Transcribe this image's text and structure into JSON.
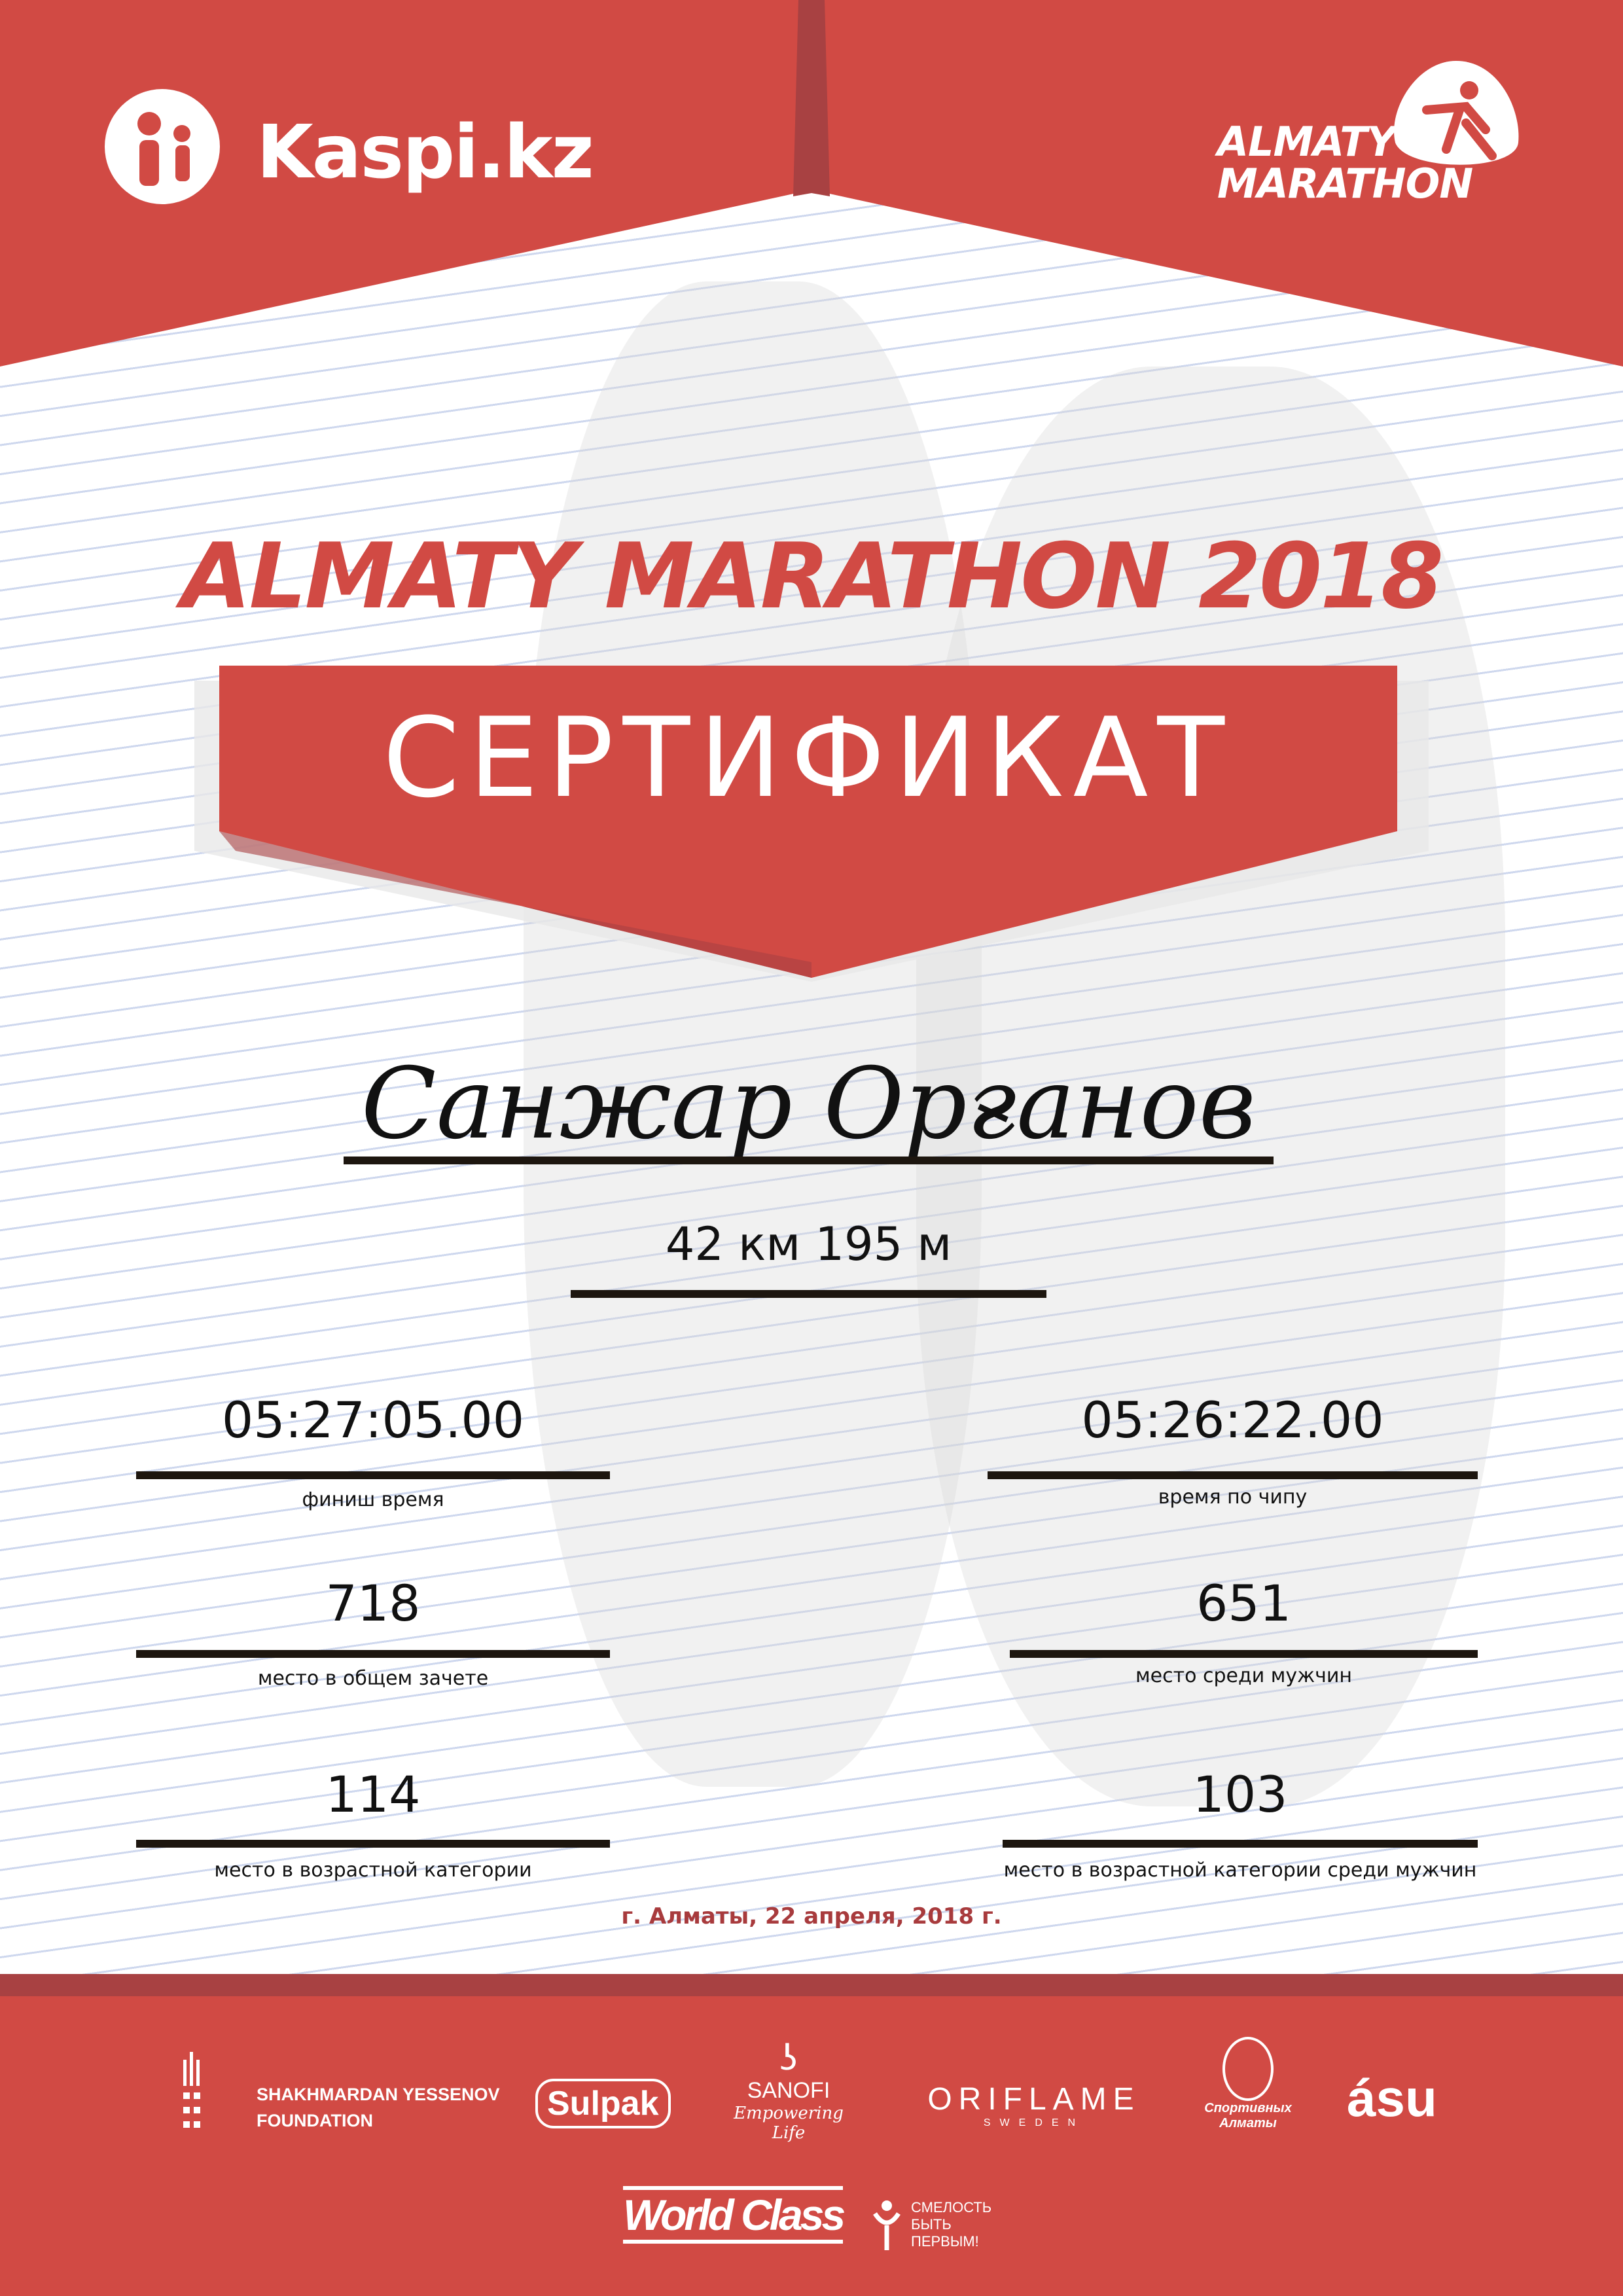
{
  "colors": {
    "brand_red": "#d14a44",
    "dark_red": "#a84142",
    "date_red": "#a83b3d",
    "line_blue": "#c9d3ec"
  },
  "header": {
    "left_logo": "Kaspi.kz",
    "right_logo_line1": "ALMATY",
    "right_logo_line2": "MARATHON"
  },
  "title": "ALMATY MARATHON 2018",
  "banner": "СЕРТИФИКАТ",
  "participant": {
    "name": "Санжар Орғанов",
    "distance": "42 км 195 м"
  },
  "results": {
    "finish_time": {
      "value": "05:27:05.00",
      "label": "финиш время"
    },
    "chip_time": {
      "value": "05:26:22.00",
      "label": "время по чипу"
    },
    "overall_place": {
      "value": "718",
      "label": "место в общем зачете"
    },
    "gender_place": {
      "value": "651",
      "label": "место среди мужчин"
    },
    "age_place": {
      "value": "114",
      "label": "место в возрастной категории"
    },
    "age_gender_place": {
      "value": "103",
      "label": "место в возрастной категории среди мужчин"
    }
  },
  "date": "г. Алматы, 22 апреля, 2018 г.",
  "sponsors": {
    "yessenov": [
      "SHAKHMARDAN YESSENOV",
      "FOUNDATION"
    ],
    "sulpak": "Sulpak",
    "sanofi": [
      "SANOFI",
      "Empowering Life"
    ],
    "oriflame": [
      "ORIFLAME",
      "SWEDEN"
    ],
    "sport_almaty": [
      "Спортивных",
      "Алматы"
    ],
    "asu": "ásu",
    "worldclass": "World Class",
    "smelost": [
      "СМЕЛОСТЬ",
      "БЫТЬ",
      "ПЕРВЫМ!"
    ]
  }
}
